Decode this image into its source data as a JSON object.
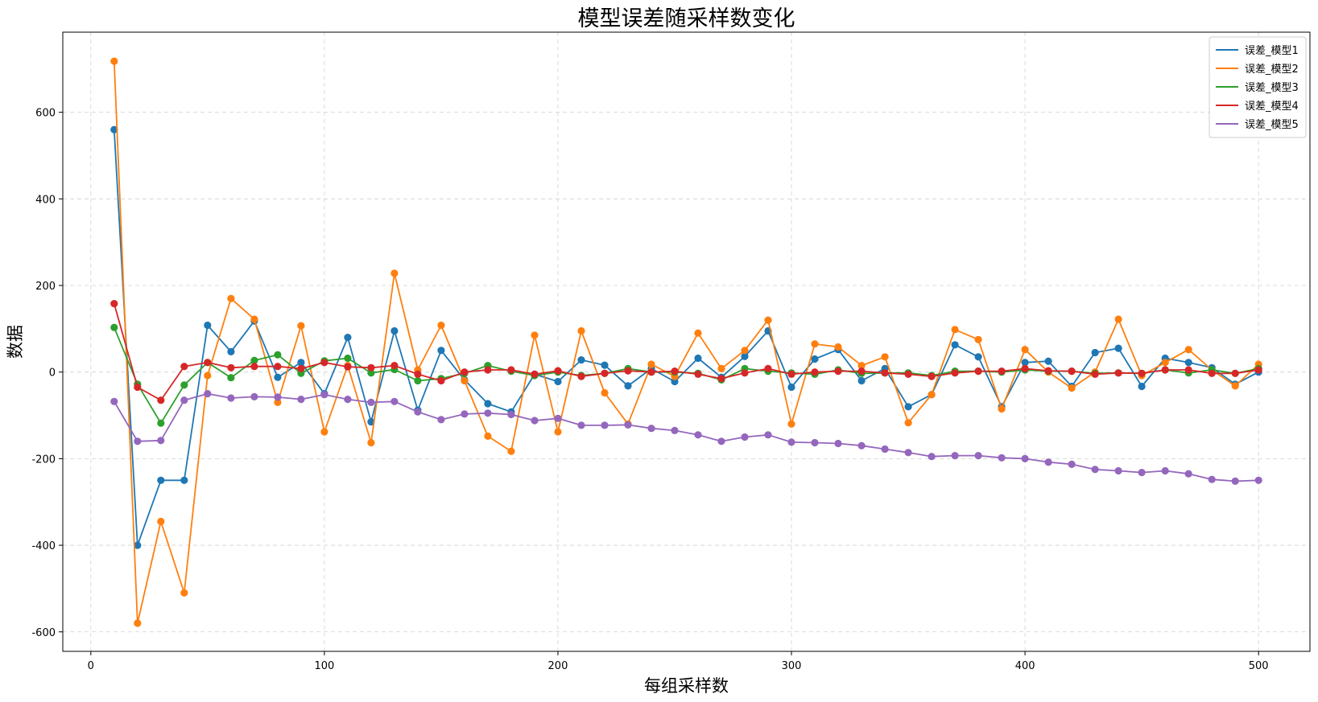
{
  "chart_data": {
    "type": "line",
    "title": "模型误差随采样数变化",
    "xlabel": "每组采样数",
    "ylabel": "数据",
    "xlim": [
      -12,
      522
    ],
    "ylim": [
      -645,
      785
    ],
    "xticks": [
      0,
      100,
      200,
      300,
      400,
      500
    ],
    "yticks": [
      -600,
      -400,
      -200,
      0,
      200,
      400,
      600
    ],
    "grid": true,
    "legend_position": "top-right",
    "x": [
      10,
      20,
      30,
      40,
      50,
      60,
      70,
      80,
      90,
      100,
      110,
      120,
      130,
      140,
      150,
      160,
      170,
      180,
      190,
      200,
      210,
      220,
      230,
      240,
      250,
      260,
      270,
      280,
      290,
      300,
      310,
      320,
      330,
      340,
      350,
      360,
      370,
      380,
      390,
      400,
      410,
      420,
      430,
      440,
      450,
      460,
      470,
      480,
      490,
      500
    ],
    "series": [
      {
        "name": "误差_模型1",
        "color": "#1f77b4",
        "values": [
          560,
          -400,
          -250,
          -250,
          108,
          47,
          118,
          -12,
          22,
          -50,
          80,
          -115,
          95,
          -88,
          50,
          -18,
          -73,
          -92,
          -5,
          -22,
          28,
          16,
          -32,
          8,
          -22,
          32,
          -12,
          36,
          95,
          -35,
          30,
          52,
          -20,
          8,
          -80,
          -52,
          63,
          35,
          -80,
          22,
          25,
          -33,
          45,
          55,
          -33,
          32,
          22,
          10,
          -28,
          0
        ]
      },
      {
        "name": "误差_模型2",
        "color": "#ff7f0e",
        "values": [
          718,
          -580,
          -345,
          -510,
          -8,
          170,
          122,
          -70,
          107,
          -138,
          15,
          -163,
          228,
          5,
          108,
          -20,
          -148,
          -183,
          85,
          -138,
          95,
          -48,
          -120,
          18,
          -10,
          90,
          8,
          50,
          120,
          -120,
          65,
          58,
          15,
          35,
          -117,
          -52,
          98,
          75,
          -85,
          52,
          0,
          -37,
          0,
          122,
          -8,
          22,
          52,
          5,
          -32,
          18
        ]
      },
      {
        "name": "误差_模型3",
        "color": "#2ca02c",
        "values": [
          103,
          -28,
          -118,
          -30,
          22,
          -13,
          27,
          40,
          -3,
          26,
          32,
          -2,
          6,
          -20,
          -15,
          -3,
          15,
          2,
          -8,
          0,
          -8,
          -3,
          8,
          0,
          0,
          -3,
          -18,
          8,
          2,
          -2,
          -5,
          5,
          -3,
          -2,
          -2,
          -8,
          2,
          2,
          0,
          5,
          2,
          2,
          -3,
          -2,
          -3,
          5,
          -2,
          5,
          -3,
          8
        ]
      },
      {
        "name": "误差_模型4",
        "color": "#d62728",
        "values": [
          158,
          -35,
          -65,
          13,
          22,
          10,
          13,
          13,
          8,
          22,
          12,
          10,
          15,
          -5,
          -20,
          0,
          5,
          5,
          -5,
          3,
          -10,
          -3,
          3,
          0,
          2,
          -5,
          -15,
          -2,
          8,
          -5,
          0,
          2,
          2,
          -2,
          -5,
          -10,
          -2,
          2,
          2,
          8,
          3,
          2,
          -5,
          -2,
          -3,
          5,
          5,
          -3,
          -3,
          5
        ]
      },
      {
        "name": "误差_模型5",
        "color": "#9467bd",
        "values": [
          -68,
          -160,
          -158,
          -65,
          -50,
          -60,
          -57,
          -58,
          -63,
          -52,
          -63,
          -70,
          -68,
          -92,
          -110,
          -97,
          -95,
          -98,
          -112,
          -107,
          -123,
          -123,
          -122,
          -130,
          -135,
          -145,
          -160,
          -150,
          -145,
          -162,
          -163,
          -165,
          -170,
          -178,
          -186,
          -195,
          -193,
          -193,
          -198,
          -200,
          -208,
          -213,
          -225,
          -228,
          -232,
          -228,
          -235,
          -248,
          -252,
          -250
        ]
      }
    ]
  }
}
